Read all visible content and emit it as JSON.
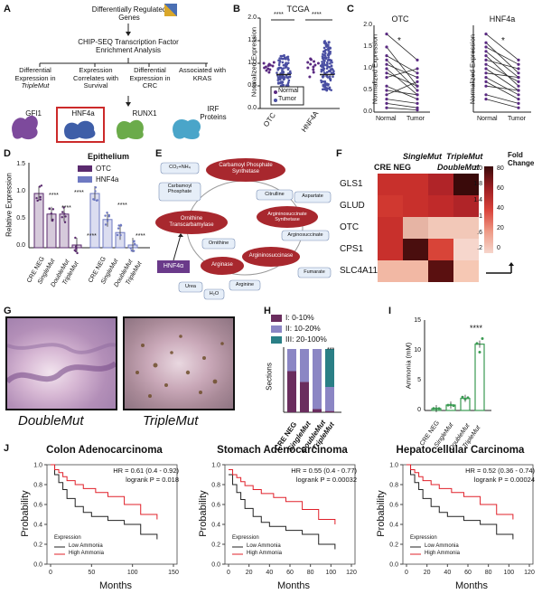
{
  "panels": {
    "A": {
      "letter": "A",
      "top_text": "Differentially Regulated Genes",
      "chip": "CHIP-SEQ Transcription Factor Enrichment Analysis",
      "branches": [
        {
          "pre": "Differential Expression in ",
          "ital": "TripleMut"
        },
        {
          "pre": "Expression Correlates with Survival",
          "ital": ""
        },
        {
          "pre": "Differential Expression in CRC",
          "ital": ""
        },
        {
          "pre": "Associated with KRAS",
          "ital": ""
        }
      ],
      "factors": [
        "GFI1",
        "HNF4a",
        "RUNX1",
        "IRF Proteins"
      ],
      "factor_colors": [
        "#7d4a9c",
        "#3e5ea8",
        "#6bab4a",
        "#4aa5c9"
      ],
      "highlight_color": "#cc2a2a"
    },
    "B": {
      "letter": "B",
      "title": "TCGA",
      "ylabel": "Normalized Expression",
      "groups": [
        "OTC",
        "HNF4A"
      ],
      "legend": [
        "Normal",
        "Tumor"
      ],
      "sig": [
        "****",
        "****"
      ],
      "yticks": [
        "0.0",
        "0.5",
        "1.0",
        "1.5",
        "2.0"
      ],
      "colors": {
        "normal": "#5a2a82",
        "tumor": "#4a4fa3"
      }
    },
    "C": {
      "letter": "C",
      "titles": [
        "OTC",
        "HNF4a"
      ],
      "ylabel": "Normalized Expression",
      "xlabels": [
        "Normal",
        "Tumor"
      ],
      "yticks": [
        "0.0",
        "0.5",
        "1.0",
        "1.5",
        "2.0"
      ],
      "sig": [
        "*",
        "*"
      ]
    },
    "D": {
      "letter": "D",
      "title": "Epithelium",
      "ylabel": "Relative Expression",
      "legend": [
        "OTC",
        "HNF4a"
      ],
      "categories": [
        "CRE NEG",
        "SingleMut",
        "DoubleMut",
        "TripleMut"
      ],
      "yticks": [
        "0.0",
        "0.5",
        "1.0",
        "1.5"
      ],
      "sig": [
        "****",
        "****",
        "****",
        "****",
        "****",
        "****"
      ],
      "colors": {
        "otc": "#5a2a6e",
        "hnf4a": "#6e79c2"
      }
    },
    "E": {
      "letter": "E",
      "nodes": {
        "co2": "CO₂+NH₄",
        "carbamoyl": "Carbamoyl Phosphate",
        "cps": "Carbamoyl Phosphate Synthetase",
        "otc": "Ornithine Transcarbamylase",
        "citrulline": "Citrulline",
        "aspartate": "Aspartate",
        "ass": "Argininosuccinate Synthetase",
        "argsucc": "Arginosuccinate",
        "ornithine": "Ornithine",
        "hnf4a": "HNF4α",
        "arginase": "Arginase",
        "asl": "Argininosuccinase",
        "fumarate": "Fumarate",
        "arginine": "Arginine",
        "urea": "Urea",
        "h2o": "H₂O"
      }
    },
    "F": {
      "letter": "F",
      "columns": [
        "CRE NEG",
        "SingleMut",
        "DoubleMut",
        "TripleMut"
      ],
      "rows": [
        "GLS1",
        "GLUD",
        "OTC",
        "CPS1",
        "SLC4A11"
      ],
      "legend_title": "Fold Change",
      "ticks_left": [
        "2.0",
        "1.8",
        "1.4",
        "1",
        ".6",
        ".2"
      ],
      "ticks_right": [
        "80",
        "60",
        "40",
        "20",
        "0"
      ]
    },
    "G": {
      "letter": "G",
      "labels": [
        "DoubleMut",
        "TripleMut"
      ]
    },
    "H": {
      "letter": "H",
      "legend": [
        "I: 0-10%",
        "II: 10-20%",
        "III: 20-100%"
      ],
      "ylabel": "Sections",
      "categories": [
        "CRE NEG",
        "SingleMut",
        "DoubleMut",
        "TripleMut"
      ],
      "sig": "***",
      "colors": [
        "#6a2d5e",
        "#8b86c4",
        "#2a7f86"
      ]
    },
    "I": {
      "letter": "I",
      "ylabel": "Ammonia (mM)",
      "categories": [
        "CRE NEG",
        "SingleMut",
        "DoubleMut",
        "TripleMut"
      ],
      "yticks": [
        "0",
        "5",
        "10",
        "15"
      ],
      "sig": "****"
    },
    "J": {
      "letter": "J",
      "plots": [
        {
          "title": "Colon Adenocarcinoma",
          "hr": "HR = 0.61 (0.4 - 0.92)",
          "p": "logrank P = 0.018",
          "xticks": [
            "0",
            "50",
            "100",
            "150"
          ]
        },
        {
          "title": "Stomach Adenocarcinoma",
          "hr": "HR = 0.55 (0.4 - 0.77)",
          "p": "logrank P = 0.00032",
          "xticks": [
            "0",
            "20",
            "40",
            "60",
            "80",
            "100",
            "120"
          ]
        },
        {
          "title": "Hepatocellular Carcinoma",
          "hr": "HR = 0.52 (0.36 - 0.74)",
          "p": "logrank P = 0.00024",
          "xticks": [
            "0",
            "20",
            "40",
            "60",
            "80",
            "100",
            "120"
          ]
        }
      ],
      "ylabel": "Probability",
      "xlabel": "Months",
      "yticks": [
        "0.0",
        "0.2",
        "0.4",
        "0.6",
        "0.8",
        "1.0"
      ],
      "legend_title": "Expression",
      "legend": [
        "Low Ammonia",
        "High Ammonia"
      ],
      "colors": {
        "low": "#222222",
        "high": "#e0202a"
      }
    }
  }
}
